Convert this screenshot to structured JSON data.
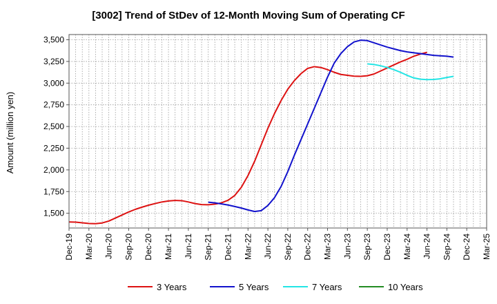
{
  "chart_data": {
    "type": "line",
    "title": "[3002]  Trend of StDev of 12-Month Moving Sum of Operating CF",
    "ylabel": "Amount (million yen)",
    "xlabel": "",
    "ylim": [
      1330,
      3560
    ],
    "yticks": [
      1500,
      1750,
      2000,
      2250,
      2500,
      2750,
      3000,
      3250,
      3500
    ],
    "ytick_labels": [
      "1,500",
      "1,750",
      "2,000",
      "2,250",
      "2,500",
      "2,750",
      "3,000",
      "3,250",
      "3,500"
    ],
    "x_categories": [
      "Dec-19",
      "Mar-20",
      "Jun-20",
      "Sep-20",
      "Dec-20",
      "Mar-21",
      "Jun-21",
      "Sep-21",
      "Dec-21",
      "Mar-22",
      "Jun-22",
      "Sep-22",
      "Dec-22",
      "Mar-23",
      "Jun-23",
      "Sep-23",
      "Dec-23",
      "Mar-24",
      "Jun-24",
      "Sep-24",
      "Dec-24",
      "Mar-25"
    ],
    "grid": true,
    "legend_position": "bottom",
    "series": [
      {
        "name": "3 Years",
        "color": "#dd1111",
        "points": [
          [
            0,
            1400
          ],
          [
            1,
            1398
          ],
          [
            2,
            1390
          ],
          [
            3,
            1382
          ],
          [
            4,
            1380
          ],
          [
            5,
            1388
          ],
          [
            6,
            1410
          ],
          [
            7,
            1445
          ],
          [
            8,
            1480
          ],
          [
            9,
            1515
          ],
          [
            10,
            1545
          ],
          [
            11,
            1570
          ],
          [
            12,
            1593
          ],
          [
            13,
            1612
          ],
          [
            14,
            1630
          ],
          [
            15,
            1642
          ],
          [
            16,
            1648
          ],
          [
            17,
            1645
          ],
          [
            18,
            1630
          ],
          [
            19,
            1612
          ],
          [
            20,
            1600
          ],
          [
            21,
            1598
          ],
          [
            22,
            1605
          ],
          [
            23,
            1620
          ],
          [
            24,
            1650
          ],
          [
            25,
            1705
          ],
          [
            26,
            1800
          ],
          [
            27,
            1935
          ],
          [
            28,
            2100
          ],
          [
            29,
            2290
          ],
          [
            30,
            2480
          ],
          [
            31,
            2650
          ],
          [
            32,
            2800
          ],
          [
            33,
            2930
          ],
          [
            34,
            3030
          ],
          [
            35,
            3110
          ],
          [
            36,
            3170
          ],
          [
            37,
            3190
          ],
          [
            38,
            3180
          ],
          [
            39,
            3155
          ],
          [
            40,
            3125
          ],
          [
            41,
            3100
          ],
          [
            42,
            3090
          ],
          [
            43,
            3080
          ],
          [
            44,
            3078
          ],
          [
            45,
            3085
          ],
          [
            46,
            3105
          ],
          [
            47,
            3140
          ],
          [
            48,
            3175
          ],
          [
            49,
            3210
          ],
          [
            50,
            3245
          ],
          [
            51,
            3275
          ],
          [
            52,
            3310
          ],
          [
            53,
            3335
          ],
          [
            54,
            3355
          ]
        ]
      },
      {
        "name": "5 Years",
        "color": "#1111cc",
        "points": [
          [
            21,
            1628
          ],
          [
            22,
            1620
          ],
          [
            23,
            1608
          ],
          [
            24,
            1595
          ],
          [
            25,
            1578
          ],
          [
            26,
            1560
          ],
          [
            27,
            1538
          ],
          [
            28,
            1520
          ],
          [
            29,
            1530
          ],
          [
            30,
            1590
          ],
          [
            31,
            1680
          ],
          [
            32,
            1810
          ],
          [
            33,
            1980
          ],
          [
            34,
            2170
          ],
          [
            35,
            2350
          ],
          [
            36,
            2530
          ],
          [
            37,
            2710
          ],
          [
            38,
            2890
          ],
          [
            39,
            3070
          ],
          [
            40,
            3230
          ],
          [
            41,
            3340
          ],
          [
            42,
            3420
          ],
          [
            43,
            3475
          ],
          [
            44,
            3495
          ],
          [
            45,
            3490
          ],
          [
            46,
            3465
          ],
          [
            47,
            3440
          ],
          [
            48,
            3415
          ],
          [
            49,
            3395
          ],
          [
            50,
            3375
          ],
          [
            51,
            3360
          ],
          [
            52,
            3350
          ],
          [
            53,
            3340
          ],
          [
            54,
            3330
          ],
          [
            55,
            3320
          ],
          [
            56,
            3315
          ],
          [
            57,
            3310
          ],
          [
            58,
            3300
          ]
        ]
      },
      {
        "name": "7 Years",
        "color": "#22e5e5",
        "points": [
          [
            45,
            3222
          ],
          [
            46,
            3215
          ],
          [
            47,
            3200
          ],
          [
            48,
            3180
          ],
          [
            49,
            3155
          ],
          [
            50,
            3125
          ],
          [
            51,
            3090
          ],
          [
            52,
            3060
          ],
          [
            53,
            3045
          ],
          [
            54,
            3040
          ],
          [
            55,
            3042
          ],
          [
            56,
            3050
          ],
          [
            57,
            3065
          ],
          [
            58,
            3078
          ]
        ]
      },
      {
        "name": "10 Years",
        "color": "#228b22",
        "points": []
      }
    ]
  }
}
